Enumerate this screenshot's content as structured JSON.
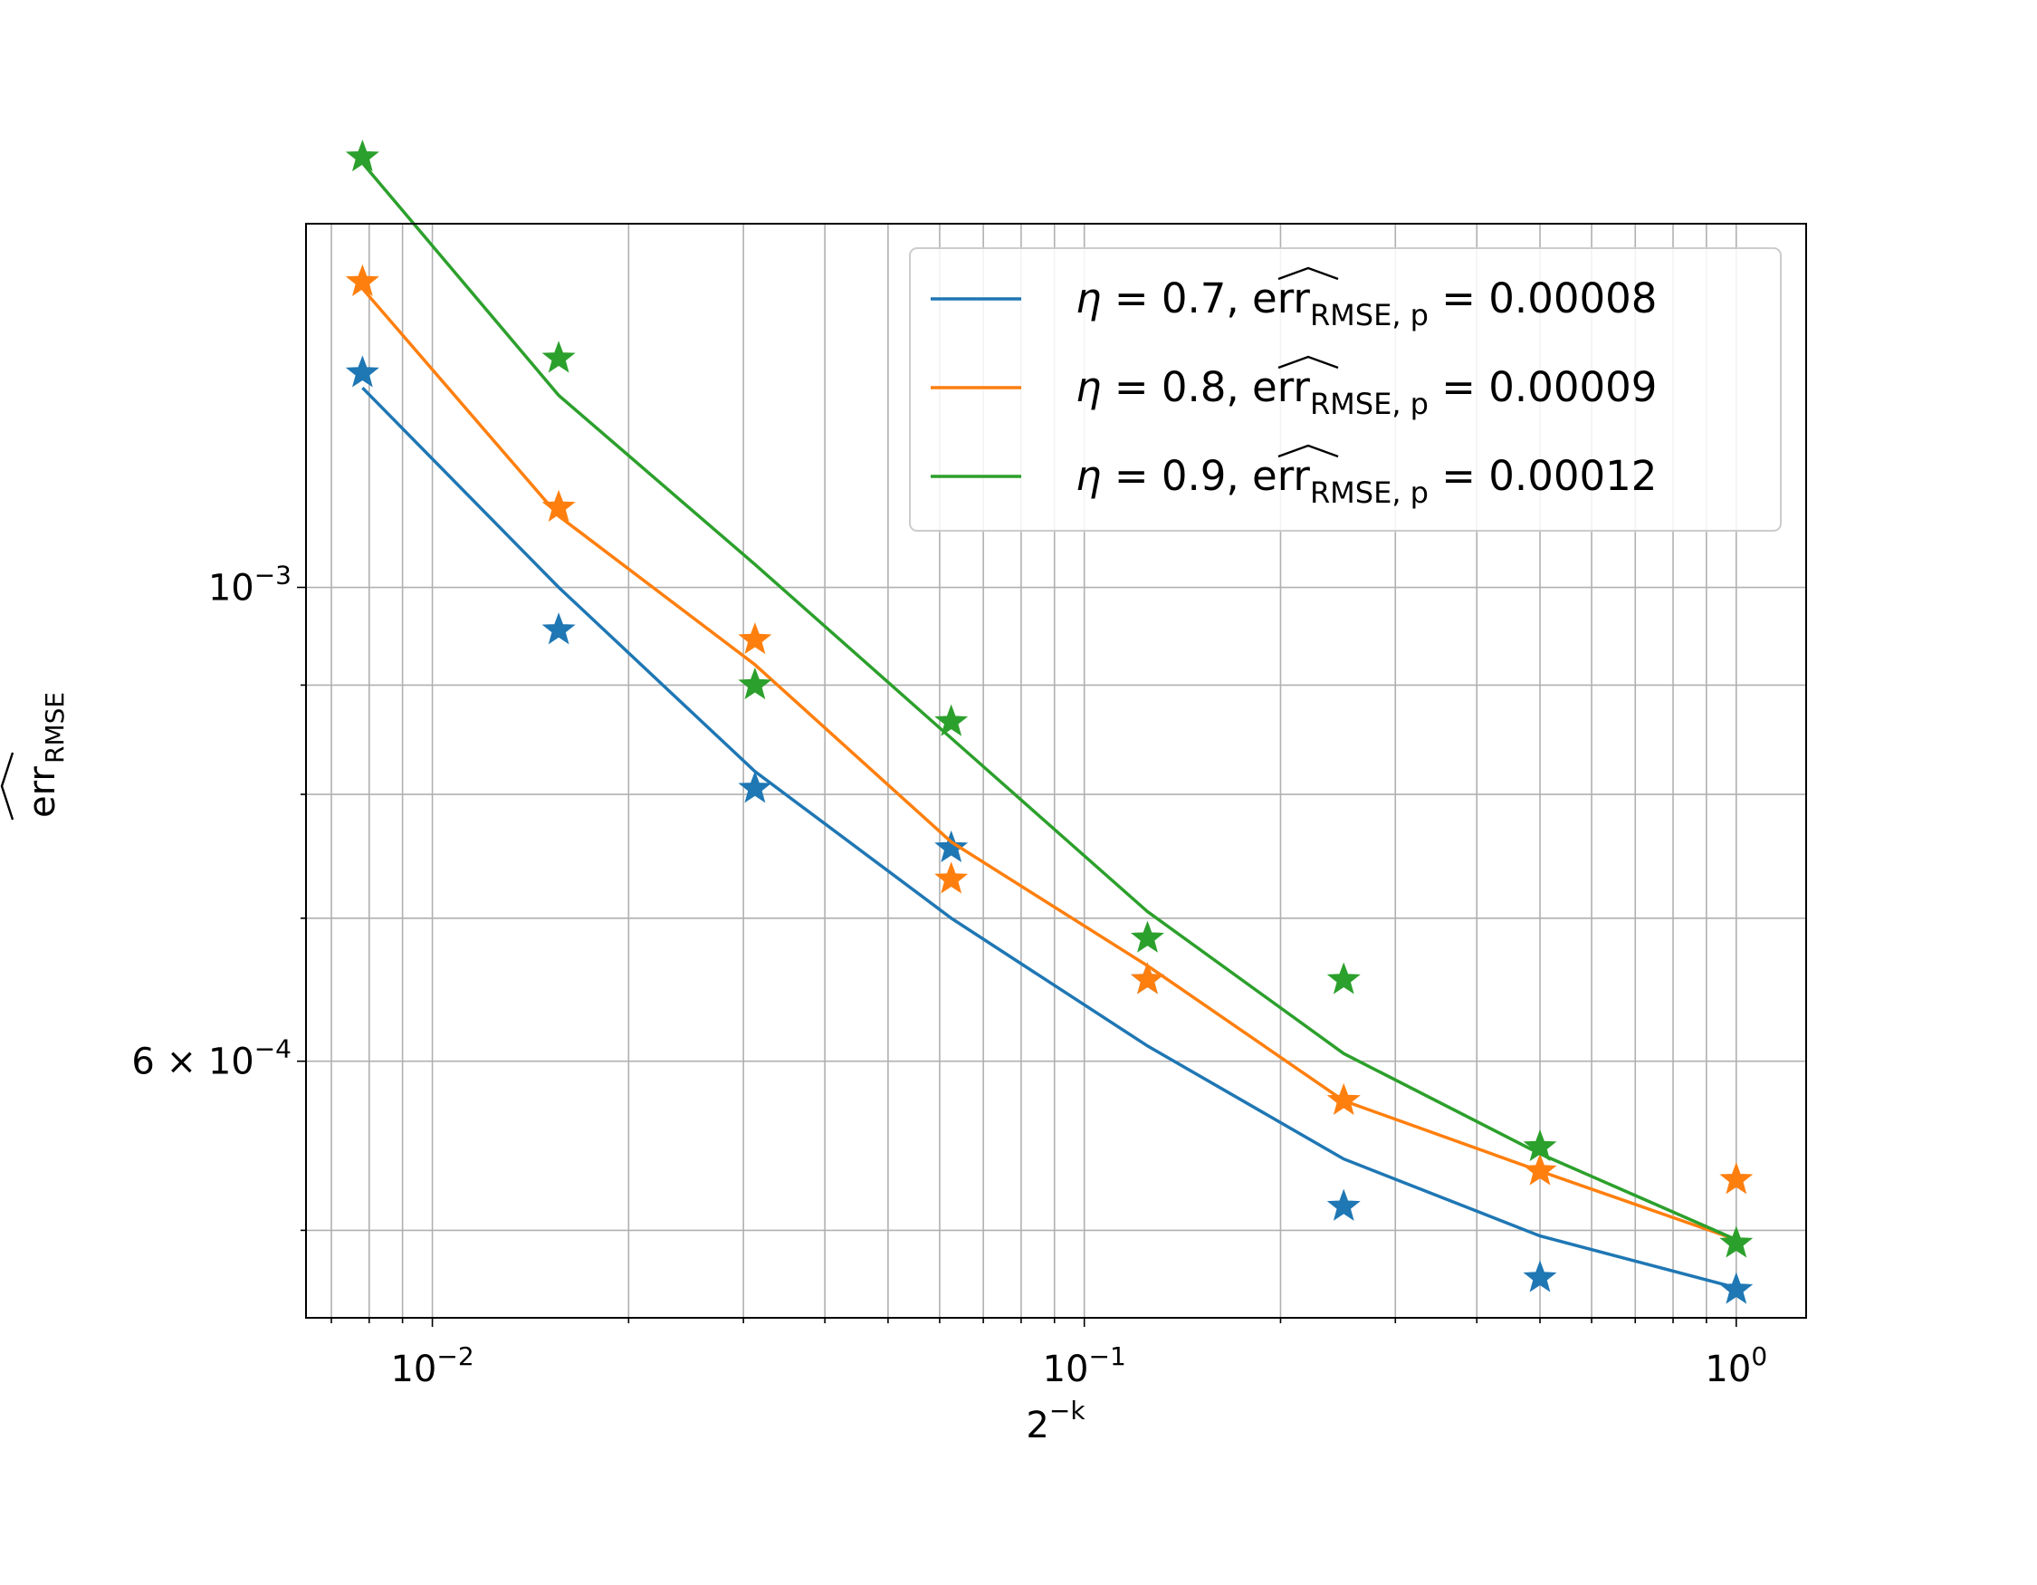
{
  "chart_data": {
    "type": "line",
    "title": "",
    "xlabel": "2^{-k}",
    "ylabel": "err_RMSE",
    "xscale": "log",
    "yscale": "log",
    "xlim": [
      0.0064,
      1.28
    ],
    "ylim": [
      0.000455,
      0.00148
    ],
    "x": [
      0.0078125,
      0.015625,
      0.03125,
      0.0625,
      0.125,
      0.25,
      0.5,
      1.0
    ],
    "x_tick_labels": [
      {
        "value": 0.01,
        "base": "10",
        "exp": "−2"
      },
      {
        "value": 0.1,
        "base": "10",
        "exp": "−1"
      },
      {
        "value": 1.0,
        "base": "10",
        "exp": "0"
      }
    ],
    "y_tick_labels": [
      {
        "value": 0.001,
        "prefix": "",
        "base": "10",
        "exp": "−3"
      },
      {
        "value": 0.0006,
        "prefix": "6 × ",
        "base": "10",
        "exp": "−4"
      }
    ],
    "y_minor_ticks": [
      0.0005,
      0.0007,
      0.0008,
      0.0009
    ],
    "grid": true,
    "legend_position": "upper right",
    "series": [
      {
        "name": "η = 0.7, err_RMSE,p = 0.00008",
        "eta": "0.7",
        "err": "0.00008",
        "color": "#1f77b4",
        "fit": [
          0.00124,
          0.001,
          0.00082,
          0.0007,
          0.00061,
          0.00054,
          0.000497,
          0.00047
        ],
        "observed": [
          0.00126,
          0.000955,
          0.000805,
          0.000755,
          0.000655,
          0.000513,
          0.000475,
          0.000469
        ]
      },
      {
        "name": "η = 0.8, err_RMSE,p = 0.00009",
        "eta": "0.8",
        "err": "0.00009",
        "color": "#ff7f0e",
        "fit": [
          0.00138,
          0.00108,
          0.00092,
          0.00076,
          0.000665,
          0.000575,
          0.000533,
          0.000495
        ],
        "observed": [
          0.00139,
          0.00109,
          0.000945,
          0.00073,
          0.000655,
          0.000575,
          0.000533,
          0.000528
        ]
      },
      {
        "name": "η = 0.9, err_RMSE,p = 0.00012",
        "eta": "0.9",
        "err": "0.00012",
        "color": "#2ca02c",
        "fit": [
          0.00158,
          0.00123,
          0.001025,
          0.00085,
          0.000705,
          0.000605,
          0.000543,
          0.000495
        ],
        "observed": [
          0.00159,
          0.00128,
          0.0009,
          0.000865,
          0.000685,
          0.000655,
          0.000547,
          0.000493
        ]
      }
    ]
  }
}
